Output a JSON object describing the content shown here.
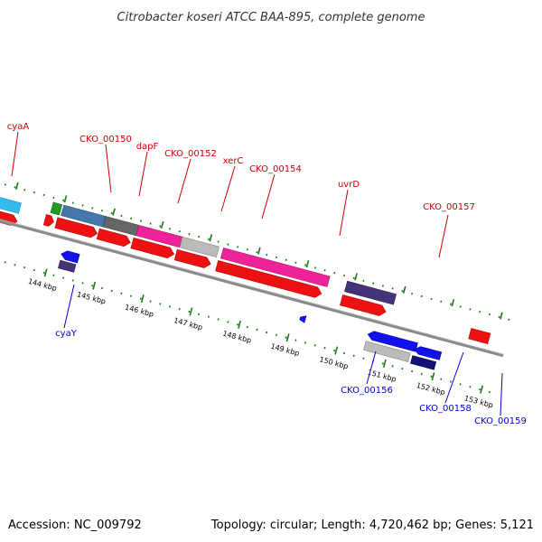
{
  "header": {
    "title": "Citrobacter koseri ATCC BAA-895, complete genome"
  },
  "footer": {
    "accession": "Accession: NC_009792",
    "topology": "Topology: circular; Length: 4,720,462 bp; Genes: 5,121"
  },
  "colors": {
    "forward_label": "#cc0000",
    "reverse_label": "#0000cc",
    "backbone": "#8a8a8a",
    "tick": "#1a7a1a",
    "cds_red": "#ee1111",
    "cyan": "#33bbee",
    "pink": "#ee2299",
    "steelblue": "#4477aa",
    "gray_dark": "#666666",
    "gray_light": "#bbbbbb",
    "slate": "#443377",
    "green": "#229922",
    "blue": "#1111ee",
    "navy": "#111177"
  },
  "scale": {
    "tick_labels": [
      "144 kbp",
      "145 kbp",
      "146 kbp",
      "147 kbp",
      "148 kbp",
      "149 kbp",
      "150 kbp",
      "151 kbp",
      "152 kbp",
      "153 kbp"
    ]
  },
  "gene_labels": {
    "forward": [
      "cyaA",
      "CKO_00150",
      "dapF",
      "CKO_00152",
      "xerC",
      "CKO_00154",
      "uvrD",
      "CKO_00157"
    ],
    "reverse": [
      "cyaY",
      "CKO_00156",
      "CKO_00158",
      "CKO_00159"
    ]
  }
}
